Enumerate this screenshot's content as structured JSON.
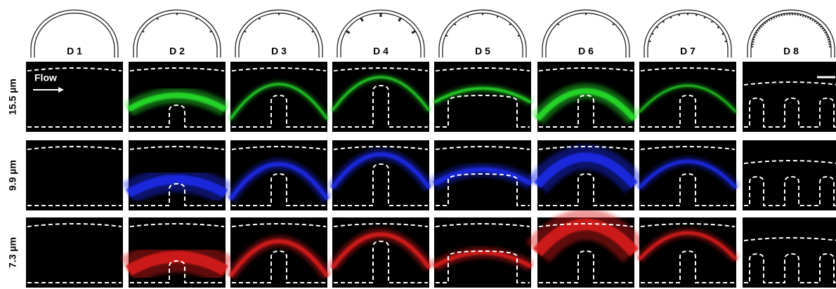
{
  "columns": [
    {
      "label": "D 1"
    },
    {
      "label": "D 2"
    },
    {
      "label": "D 3"
    },
    {
      "label": "D 4"
    },
    {
      "label": "D 5"
    },
    {
      "label": "D 6"
    },
    {
      "label": "D 7"
    },
    {
      "label": "D 8"
    }
  ],
  "rows": [
    {
      "label": "15.5 µm"
    },
    {
      "label": "9.9 µm"
    },
    {
      "label": "7.3 µm"
    }
  ],
  "annotation": "Flow"
}
